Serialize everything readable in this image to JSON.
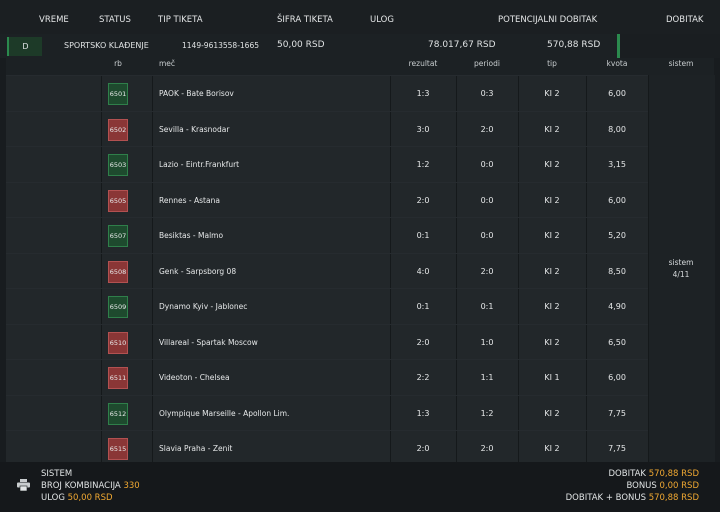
{
  "header": {
    "vreme": "VREME",
    "status": "STATUS",
    "tip_tiketa": "TIP TIKETA",
    "sifra_tiketa": "ŠIFRA TIKETA",
    "ulog": "ULOG",
    "potencijalni_dobitak": "POTENCIJALNI DOBITAK",
    "dobitak": "DOBITAK"
  },
  "ticket": {
    "status_badge": "D",
    "tip": "SPORTSKO KLAĐENJE",
    "sifra": "1149-9613558-1665",
    "ulog": "50,00 RSD",
    "potencijalni": "78.017,67 RSD",
    "dobitak": "570,88 RSD"
  },
  "columns": {
    "rb": "rb",
    "mec": "meč",
    "rezultat": "rezultat",
    "periodi": "periodi",
    "tip": "tip",
    "kvota": "kvota",
    "sistem": "sistem"
  },
  "matches": [
    {
      "rb": "6501",
      "status": "won",
      "mec": "PAOK - Bate Borisov",
      "rezultat": "1:3",
      "periodi": "0:3",
      "tip": "KI 2",
      "kvota": "6,00"
    },
    {
      "rb": "6502",
      "status": "lost",
      "mec": "Sevilla - Krasnodar",
      "rezultat": "3:0",
      "periodi": "2:0",
      "tip": "KI 2",
      "kvota": "8,00"
    },
    {
      "rb": "6503",
      "status": "won",
      "mec": "Lazio - Eintr.Frankfurt",
      "rezultat": "1:2",
      "periodi": "0:0",
      "tip": "KI 2",
      "kvota": "3,15"
    },
    {
      "rb": "6505",
      "status": "lost",
      "mec": "Rennes - Astana",
      "rezultat": "2:0",
      "periodi": "0:0",
      "tip": "KI 2",
      "kvota": "6,00"
    },
    {
      "rb": "6507",
      "status": "won",
      "mec": "Besiktas - Malmo",
      "rezultat": "0:1",
      "periodi": "0:0",
      "tip": "KI 2",
      "kvota": "5,20"
    },
    {
      "rb": "6508",
      "status": "lost",
      "mec": "Genk - Sarpsborg 08",
      "rezultat": "4:0",
      "periodi": "2:0",
      "tip": "KI 2",
      "kvota": "8,50"
    },
    {
      "rb": "6509",
      "status": "won",
      "mec": "Dynamo Kyiv - Jablonec",
      "rezultat": "0:1",
      "periodi": "0:1",
      "tip": "KI 2",
      "kvota": "4,90"
    },
    {
      "rb": "6510",
      "status": "lost",
      "mec": "Villareal - Spartak Moscow",
      "rezultat": "2:0",
      "periodi": "1:0",
      "tip": "KI 2",
      "kvota": "6,50"
    },
    {
      "rb": "6511",
      "status": "lost",
      "mec": "Videoton - Chelsea",
      "rezultat": "2:2",
      "periodi": "1:1",
      "tip": "KI 1",
      "kvota": "6,00"
    },
    {
      "rb": "6512",
      "status": "won",
      "mec": "Olympique Marseille - Apollon Lim.",
      "rezultat": "1:3",
      "periodi": "1:2",
      "tip": "KI 2",
      "kvota": "7,75"
    },
    {
      "rb": "6515",
      "status": "lost",
      "mec": "Slavia Praha - Zenit",
      "rezultat": "2:0",
      "periodi": "2:0",
      "tip": "KI 2",
      "kvota": "7,75"
    }
  ],
  "sistem": {
    "line1": "sistem",
    "line2": "4/11"
  },
  "footer": {
    "sistem_label": "SISTEM",
    "broj_label": "BROJ KOMBINACIJA",
    "broj_value": "330",
    "ulog_label": "ULOG",
    "ulog_value": "50,00 RSD",
    "dobitak_label": "DOBITAK",
    "dobitak_value": "570,88 RSD",
    "bonus_label": "BONUS",
    "bonus_value": "0,00 RSD",
    "total_label": "DOBITAK + BONUS",
    "total_value": "570,88 RSD"
  },
  "icons": {
    "print": "printer-icon"
  },
  "colors": {
    "won": "#1e4a2e",
    "lost": "#8a3636",
    "accent": "#f0a832"
  }
}
